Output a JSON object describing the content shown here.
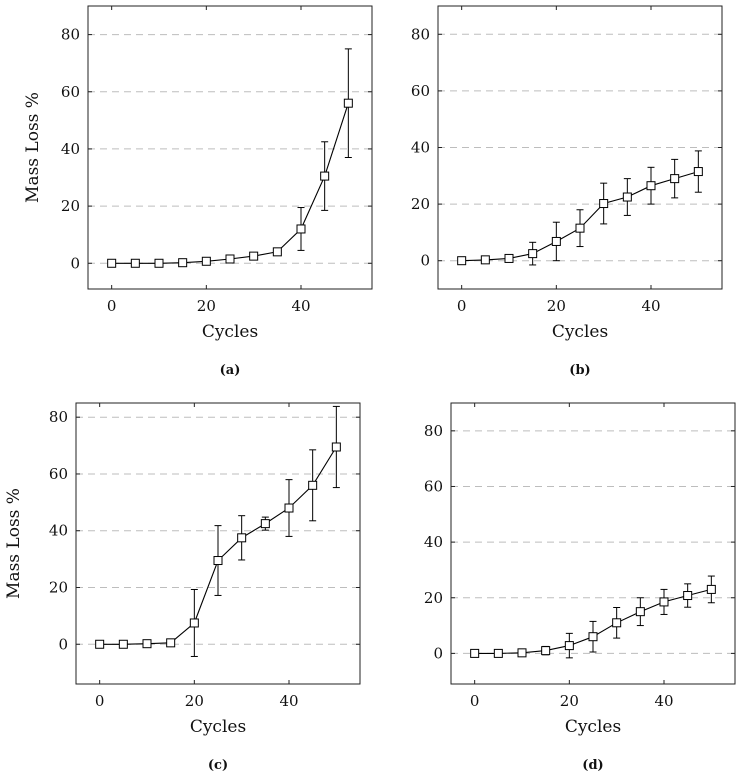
{
  "chart_data": [
    {
      "id": "a",
      "type": "line",
      "caption": "(a)",
      "xlabel": "Cycles",
      "ylabel": "Mass Loss %",
      "xlim": [
        -5,
        55
      ],
      "ylim": [
        -9,
        90
      ],
      "xticks": [
        "0",
        "20",
        "40"
      ],
      "yticks": [
        "0",
        "20",
        "40",
        "60",
        "80"
      ],
      "grid": "horizontal-dashed",
      "x": [
        0,
        5,
        10,
        15,
        20,
        25,
        30,
        35,
        40,
        45,
        50
      ],
      "y": [
        0,
        0,
        0,
        0.2,
        0.7,
        1.5,
        2.5,
        4,
        12,
        30.5,
        56
      ],
      "err": [
        0,
        0,
        0,
        0.3,
        0.5,
        0.6,
        0.8,
        1,
        7.5,
        12,
        19
      ]
    },
    {
      "id": "b",
      "type": "line",
      "caption": "(b)",
      "xlabel": "Cycles",
      "ylabel": "",
      "xlim": [
        -5,
        55
      ],
      "ylim": [
        -10,
        90
      ],
      "xticks": [
        "0",
        "20",
        "40"
      ],
      "yticks": [
        "0",
        "20",
        "40",
        "60",
        "80"
      ],
      "grid": "horizontal-dashed",
      "x": [
        0,
        5,
        10,
        15,
        20,
        25,
        30,
        35,
        40,
        45,
        50
      ],
      "y": [
        0,
        0.3,
        0.8,
        2.5,
        6.8,
        11.5,
        20.2,
        22.5,
        26.5,
        29,
        31.5
      ],
      "err": [
        0,
        0,
        0,
        4,
        6.8,
        6.5,
        7.2,
        6.5,
        6.5,
        6.8,
        7.3
      ]
    },
    {
      "id": "c",
      "type": "line",
      "caption": "(c)",
      "xlabel": "Cycles",
      "ylabel": "Mass Loss %",
      "xlim": [
        -5,
        55
      ],
      "ylim": [
        -14,
        85
      ],
      "xticks": [
        "0",
        "20",
        "40"
      ],
      "yticks": [
        "0",
        "20",
        "40",
        "60",
        "80"
      ],
      "grid": "horizontal-dashed",
      "x": [
        0,
        5,
        10,
        15,
        20,
        25,
        30,
        35,
        40,
        45,
        50
      ],
      "y": [
        0,
        0,
        0.2,
        0.5,
        7.5,
        29.5,
        37.5,
        42.5,
        48,
        56,
        69.5
      ],
      "err": [
        0,
        0,
        0.2,
        1,
        11.8,
        12.3,
        7.8,
        2.3,
        10,
        12.5,
        14.3
      ]
    },
    {
      "id": "d",
      "type": "line",
      "caption": "(d)",
      "xlabel": "Cycles",
      "ylabel": "",
      "xlim": [
        -5,
        55
      ],
      "ylim": [
        -11,
        90
      ],
      "xticks": [
        "0",
        "20",
        "40"
      ],
      "yticks": [
        "0",
        "20",
        "40",
        "60",
        "80"
      ],
      "grid": "horizontal-dashed",
      "x": [
        0,
        5,
        10,
        15,
        20,
        25,
        30,
        35,
        40,
        45,
        50
      ],
      "y": [
        0,
        0,
        0.2,
        1,
        2.8,
        6,
        11,
        15,
        18.5,
        20.8,
        23
      ],
      "err": [
        0,
        0,
        0.3,
        1.5,
        4.4,
        5.5,
        5.5,
        5,
        4.5,
        4.2,
        4.8
      ]
    }
  ]
}
